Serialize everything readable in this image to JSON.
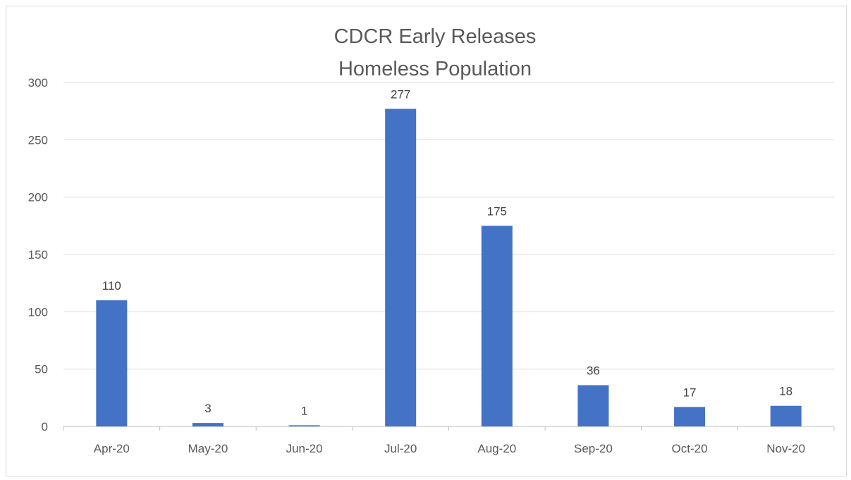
{
  "chart_data": {
    "type": "bar",
    "title_lines": [
      "CDCR Early Releases",
      "Homeless Population"
    ],
    "categories": [
      "Apr-20",
      "May-20",
      "Jun-20",
      "Jul-20",
      "Aug-20",
      "Sep-20",
      "Oct-20",
      "Nov-20"
    ],
    "values": [
      110,
      3,
      1,
      277,
      175,
      36,
      17,
      18
    ],
    "ylim": [
      0,
      300
    ],
    "yticks": [
      0,
      50,
      100,
      150,
      200,
      250,
      300
    ],
    "grid": true,
    "legend": "none",
    "bar_color": "#4472C4",
    "data_labels": true
  }
}
